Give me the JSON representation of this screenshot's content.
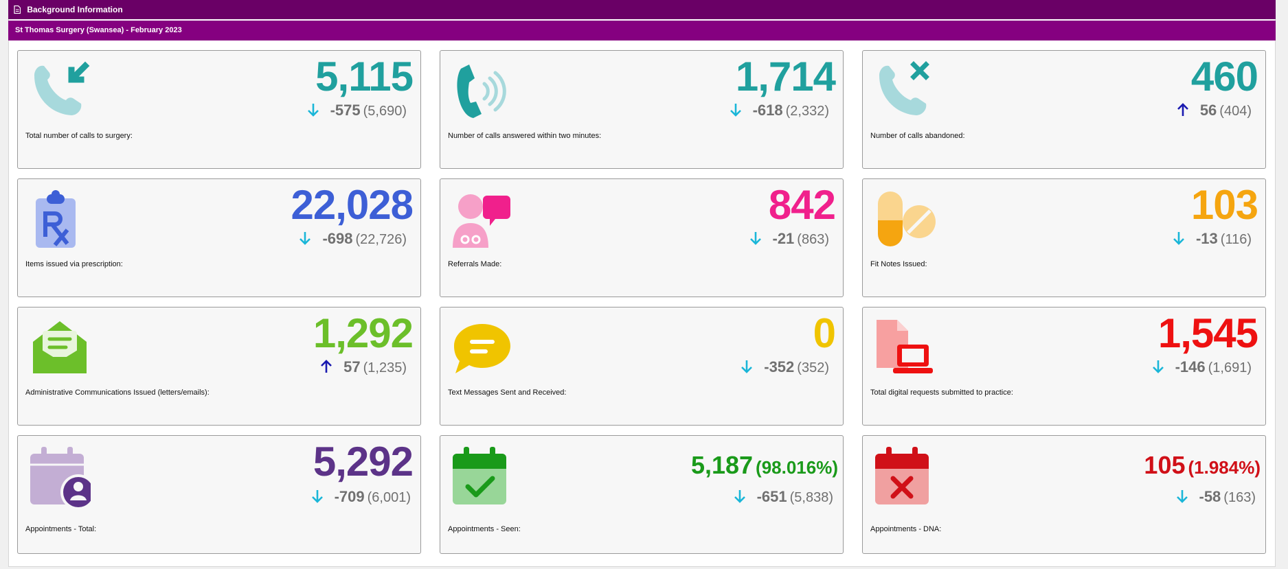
{
  "header": {
    "title": "Background Information",
    "subtitle": "St Thomas Surgery (Swansea) - February 2023"
  },
  "colors": {
    "header_dark": "#6a0066",
    "header_light": "#850080",
    "arrow_down": "#1ab6d8",
    "arrow_up": "#1a1ab0"
  },
  "cards": [
    {
      "label": "Total number of calls to surgery:",
      "value": "5,115",
      "pct": "",
      "change": "-575",
      "previous": "(5,690)",
      "trend": "down",
      "color": "#20a09e",
      "icon": "incoming-call-icon"
    },
    {
      "label": "Number of calls answered within two minutes:",
      "value": "1,714",
      "pct": "",
      "change": "-618",
      "previous": "(2,332)",
      "trend": "down",
      "color": "#20a09e",
      "icon": "phone-ringing-icon"
    },
    {
      "label": "Number of calls abandoned:",
      "value": "460",
      "pct": "",
      "change": "56",
      "previous": "(404)",
      "trend": "up",
      "color": "#20a09e",
      "icon": "missed-call-icon"
    },
    {
      "label": "Items issued via prescription:",
      "value": "22,028",
      "pct": "",
      "change": "-698",
      "previous": "(22,726)",
      "trend": "down",
      "color": "#3d5fd6",
      "icon": "prescription-icon"
    },
    {
      "label": "Referrals Made:",
      "value": "842",
      "pct": "",
      "change": "-21",
      "previous": "(863)",
      "trend": "down",
      "color": "#f0208c",
      "icon": "doctor-chat-icon"
    },
    {
      "label": "Fit Notes Issued:",
      "value": "103",
      "pct": "",
      "change": "-13",
      "previous": "(116)",
      "trend": "down",
      "color": "#f5a510",
      "icon": "pills-icon"
    },
    {
      "label": "Administrative Communications Issued (letters/emails):",
      "value": "1,292",
      "pct": "",
      "change": "57",
      "previous": "(1,235)",
      "trend": "up",
      "color": "#6cbf2a",
      "icon": "open-envelope-icon"
    },
    {
      "label": "Text Messages Sent and Received:",
      "value": "0",
      "pct": "",
      "change": "-352",
      "previous": "(352)",
      "trend": "down",
      "color": "#f0c400",
      "icon": "speech-bubble-icon"
    },
    {
      "label": "Total digital requests submitted to practice:",
      "value": "1,545",
      "pct": "",
      "change": "-146",
      "previous": "(1,691)",
      "trend": "down",
      "color": "#ee1111",
      "icon": "document-laptop-icon"
    },
    {
      "label": "Appointments - Total:",
      "value": "5,292",
      "pct": "",
      "change": "-709",
      "previous": "(6,001)",
      "trend": "down",
      "color": "#5c3388",
      "icon": "calendar-user-icon"
    },
    {
      "label": "Appointments - Seen:",
      "value": "5,187",
      "pct": "(98.016%)",
      "change": "-651",
      "previous": "(5,838)",
      "trend": "down",
      "color": "#1a9a1a",
      "icon": "calendar-check-icon"
    },
    {
      "label": "Appointments - DNA:",
      "value": "105",
      "pct": "(1.984%)",
      "change": "-58",
      "previous": "(163)",
      "trend": "down",
      "color": "#d01018",
      "icon": "calendar-cross-icon"
    }
  ]
}
